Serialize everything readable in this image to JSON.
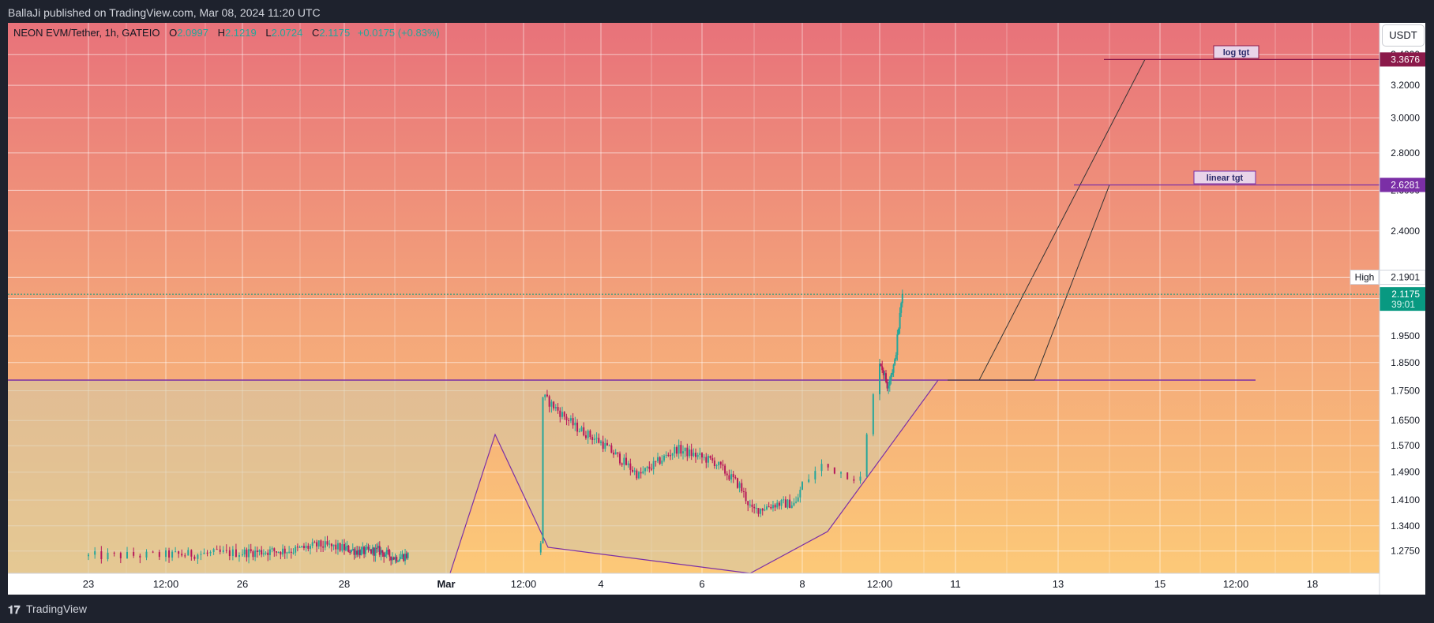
{
  "header": {
    "published": "BallaJi published on TradingView.com, Mar 08, 2024 11:20 UTC"
  },
  "legend": {
    "symbol": "NEON EVM/Tether, 1h, GATEIO",
    "open_label": "O",
    "open": "2.0997",
    "high_label": "H",
    "high": "2.1219",
    "low_label": "L",
    "low": "2.0724",
    "close_label": "C",
    "close": "2.1175",
    "change": "+0.0175 (+0.83%)"
  },
  "unit_button": "USDT",
  "footer": {
    "brand": "TradingView"
  },
  "colors": {
    "up": "#26a69a",
    "down": "#ef5350",
    "candle_wick_down": "#b7185a",
    "drawing": "#7b2fa6",
    "log_tgt": "#8b1a4a",
    "linear_tgt": "#7b2fa6",
    "current_price": "#089981",
    "bg_top": "#e8727a",
    "bg_bottom": "#fcc978"
  },
  "chart_data": {
    "type": "candlestick",
    "title": "NEON EVM/Tether, 1h, GATEIO",
    "y_ticks": [
      "3.4000",
      "3.2000",
      "3.0000",
      "2.8000",
      "2.6000",
      "2.4000",
      "2.1000",
      "1.9500",
      "1.8500",
      "1.7500",
      "1.6500",
      "1.5700",
      "1.4900",
      "1.4100",
      "1.3400",
      "1.2750"
    ],
    "x_ticks": [
      "23",
      "12:00",
      "26",
      "28",
      "Mar",
      "12:00",
      "4",
      "6",
      "8",
      "12:00",
      "11",
      "13",
      "15",
      "12:00",
      "18"
    ],
    "ylim": [
      1.22,
      3.62
    ],
    "y_scale": "log",
    "series_shape": [
      {
        "x": "Feb 22 12:00",
        "y": 1.262
      },
      {
        "x": "Feb 25 00:00",
        "y": 1.277
      },
      {
        "x": "Feb 25 12:00",
        "y": 1.29
      },
      {
        "x": "Feb 26 12:00",
        "y": 1.273
      },
      {
        "x": "Feb 27 00:00",
        "y": 1.276
      },
      {
        "x": "Feb 27 12:00",
        "y": 1.258
      },
      {
        "x": "Feb 29 21:00",
        "y": 1.3
      },
      {
        "x": "Mar 01 00:00",
        "y": 1.6
      },
      {
        "x": "Mar 01 06:00",
        "y": 1.65
      },
      {
        "x": "Mar 01 18:00",
        "y": 1.75
      },
      {
        "x": "Mar 02 12:00",
        "y": 1.63
      },
      {
        "x": "Mar 03 00:00",
        "y": 1.58
      },
      {
        "x": "Mar 03 18:00",
        "y": 1.48
      },
      {
        "x": "Mar 04 12:00",
        "y": 1.56
      },
      {
        "x": "Mar 05 06:00",
        "y": 1.52
      },
      {
        "x": "Mar 05 18:00",
        "y": 1.45
      },
      {
        "x": "Mar 06 00:00",
        "y": 1.38
      },
      {
        "x": "Mar 06 12:00",
        "y": 1.4
      },
      {
        "x": "Mar 06 21:00",
        "y": 1.4
      },
      {
        "x": "Mar 07 03:00",
        "y": 1.51
      },
      {
        "x": "Mar 07 09:00",
        "y": 1.47
      },
      {
        "x": "Mar 07 12:00",
        "y": 1.86
      },
      {
        "x": "Mar 07 18:00",
        "y": 1.77
      },
      {
        "x": "Mar 08 00:00",
        "y": 1.85
      },
      {
        "x": "Mar 08 06:00",
        "y": 2.12
      }
    ],
    "levels": [
      {
        "name": "log tgt",
        "value": 3.3676
      },
      {
        "name": "linear tgt",
        "value": 2.6281
      },
      {
        "name": "High",
        "value": 2.1901
      },
      {
        "name": "current",
        "value": 2.1175
      }
    ],
    "annotations": [
      "log tgt",
      "linear tgt",
      "High"
    ],
    "price_labels": {
      "log_tgt": "3.3676",
      "linear_tgt": "2.6281",
      "high_label": "High",
      "high": "2.1901",
      "current": "2.1175",
      "countdown": "39:01"
    },
    "grid": true
  }
}
